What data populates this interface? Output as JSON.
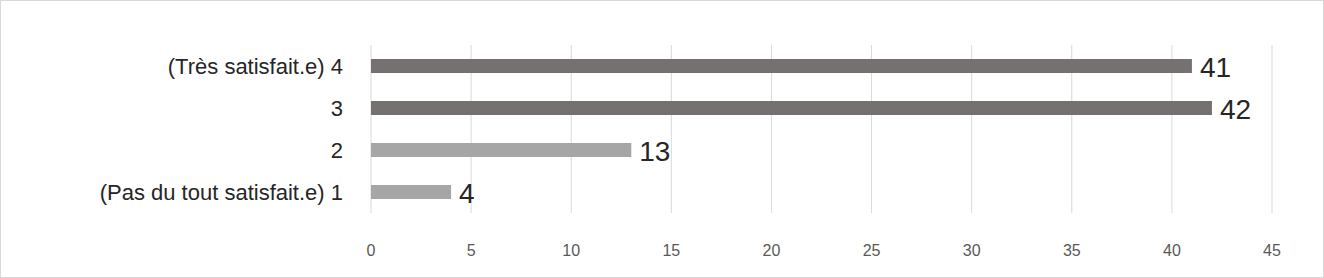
{
  "chart_data": {
    "type": "bar",
    "orientation": "horizontal",
    "categories": [
      "(Très satisfait.e) 4",
      "3",
      "2",
      "(Pas du tout satisfait.e) 1"
    ],
    "values": [
      41,
      42,
      13,
      4
    ],
    "colors": [
      "#757171",
      "#757171",
      "#a6a6a6",
      "#a6a6a6"
    ],
    "xlim": [
      0,
      45
    ],
    "xticks": [
      0,
      5,
      10,
      15,
      20,
      25,
      30,
      35,
      40,
      45
    ],
    "grid": true,
    "data_labels": true
  }
}
